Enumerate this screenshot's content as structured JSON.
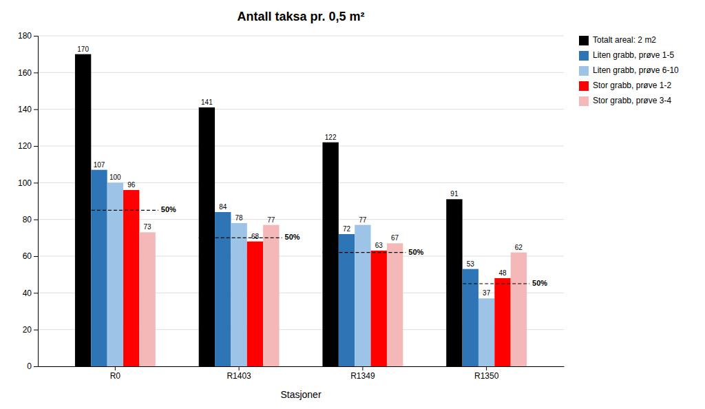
{
  "chart_data": {
    "type": "bar",
    "title": "Antall taksa pr. 0,5 m²",
    "xlabel": "Stasjoner",
    "categories": [
      "R0",
      "R1403",
      "R1349",
      "R1350"
    ],
    "series": [
      {
        "name": "Totalt areal: 2 m2",
        "color": "#000000",
        "values": [
          170,
          141,
          122,
          91
        ]
      },
      {
        "name": "Liten grabb, prøve 1-5",
        "color": "#2e75b6",
        "values": [
          107,
          84,
          72,
          53
        ]
      },
      {
        "name": "Liten grabb, prøve 6-10",
        "color": "#9dc3e6",
        "values": [
          100,
          78,
          77,
          37
        ]
      },
      {
        "name": "Stor grabb, prøve 1-2",
        "color": "#ff0000",
        "values": [
          96,
          68,
          63,
          48
        ]
      },
      {
        "name": "Stor grabb, prøve 3-4",
        "color": "#f4b8b8",
        "values": [
          73,
          77,
          67,
          62
        ]
      }
    ],
    "annotations": [
      {
        "value": 85,
        "text": "50%"
      },
      {
        "value": 70,
        "text": "50%"
      },
      {
        "value": 62,
        "text": "50%"
      },
      {
        "value": 45,
        "text": "50%"
      }
    ],
    "ylim": [
      0,
      180
    ],
    "yticks": [
      0,
      20,
      40,
      60,
      80,
      100,
      120,
      140,
      160,
      180
    ],
    "grid": true,
    "legend": "upper right",
    "data_labels": true
  }
}
